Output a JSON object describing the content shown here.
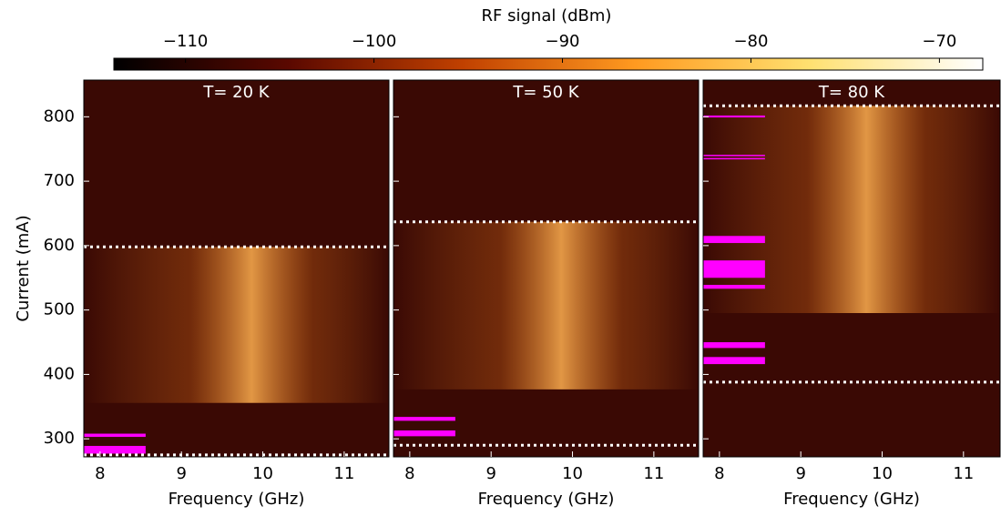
{
  "chart_data": {
    "type": "heatmap",
    "ylabel": "Current (mA)",
    "ylim": [
      272,
      857
    ],
    "yticks": [
      300,
      400,
      500,
      600,
      700,
      800
    ],
    "band_color": "#ff00ff",
    "threshold_color": "#ffffff",
    "colorbar": {
      "label": "RF signal (dBm)",
      "lim": [
        -113.8,
        -67.7
      ],
      "colors": [
        "#000000",
        "#5a0800",
        "#c04000",
        "#ff9a20",
        "#ffe070",
        "#ffffff"
      ],
      "ticks": [
        {
          "value": -110,
          "label": "−110"
        },
        {
          "value": -100,
          "label": "−100"
        },
        {
          "value": -90,
          "label": "−90"
        },
        {
          "value": -80,
          "label": "−80"
        },
        {
          "value": -70,
          "label": "−70"
        }
      ]
    },
    "panels": [
      {
        "title": "T= 20 K",
        "xlabel": "Frequency (GHz)",
        "xlim": [
          7.8,
          11.55
        ],
        "xticks": [
          8,
          9,
          10,
          11
        ],
        "thresholds": [
          598,
          275
        ],
        "bands": [
          [
            303,
            308
          ],
          [
            277,
            289
          ]
        ],
        "band_end": 8.56
      },
      {
        "title": "T= 50 K",
        "xlabel": "Frequency (GHz)",
        "xlim": [
          7.8,
          11.55
        ],
        "xticks": [
          8,
          9,
          10,
          11
        ],
        "thresholds": [
          637,
          290
        ],
        "bands": [
          [
            328,
            334
          ],
          [
            304,
            313
          ]
        ],
        "band_end": 8.56
      },
      {
        "title": "T= 80 K",
        "xlabel": "Frequency (GHz)",
        "xlim": [
          7.8,
          11.45
        ],
        "xticks": [
          8,
          9,
          10,
          11
        ],
        "thresholds": [
          817,
          388
        ],
        "bands": [
          [
            799,
            802
          ],
          [
            739,
            741
          ],
          [
            734,
            736
          ],
          [
            604,
            615
          ],
          [
            550,
            577
          ],
          [
            533,
            539
          ],
          [
            441,
            450
          ],
          [
            416,
            427
          ]
        ],
        "band_end": 8.56
      }
    ]
  }
}
